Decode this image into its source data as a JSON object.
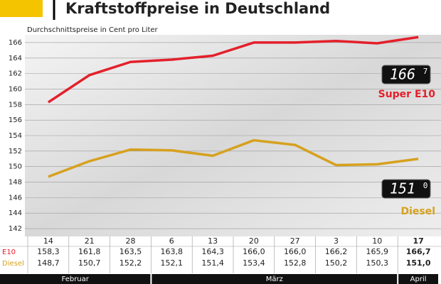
{
  "chart_data": {
    "type": "line",
    "title": "Kraftstoffpreise in Deutschland",
    "subtitle": "Durchschnittspreise in Cent pro Liter",
    "categories": [
      "14",
      "21",
      "28",
      "6",
      "13",
      "20",
      "27",
      "3",
      "10",
      "17"
    ],
    "months": [
      "Februar",
      "März",
      "April"
    ],
    "series": [
      {
        "name": "Super E10",
        "row_label": "E10",
        "color": "#e3202b",
        "values": [
          158.3,
          161.8,
          163.5,
          163.8,
          164.3,
          166.0,
          166.0,
          166.2,
          165.9,
          166.7
        ],
        "value_labels": [
          "158,3",
          "161,8",
          "163,5",
          "163,8",
          "164,3",
          "166,0",
          "166,0",
          "166,2",
          "165,9",
          "166,7"
        ],
        "display": [
          "166",
          "7"
        ]
      },
      {
        "name": "Diesel",
        "row_label": "Diesel",
        "color": "#d6a11e",
        "values": [
          148.7,
          150.7,
          152.2,
          152.1,
          151.4,
          153.4,
          152.8,
          150.2,
          150.3,
          151.0
        ],
        "value_labels": [
          "148,7",
          "150,7",
          "152,2",
          "152,1",
          "151,4",
          "153,4",
          "152,8",
          "150,2",
          "150,3",
          "151,0"
        ],
        "display": [
          "151",
          "0"
        ]
      }
    ],
    "ylim": [
      141,
      167
    ],
    "yticks": [
      142,
      144,
      146,
      148,
      150,
      152,
      154,
      156,
      158,
      160,
      162,
      164,
      166
    ],
    "grid": true
  }
}
